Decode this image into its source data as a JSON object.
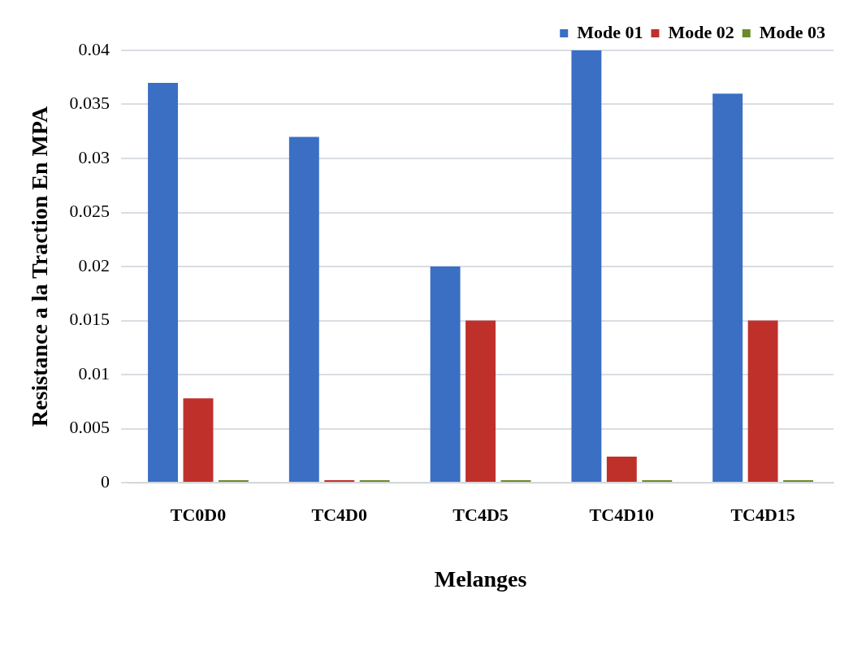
{
  "chart_data": {
    "type": "bar",
    "xlabel": "Melanges",
    "ylabel": "Resistance a la Traction En MPA",
    "categories": [
      "TC0D0",
      "TC4D0",
      "TC4D5",
      "TC4D10",
      "TC4D15"
    ],
    "series": [
      {
        "name": "Mode 01",
        "color": "#3a6fc4",
        "values": [
          0.037,
          0.032,
          0.02,
          0.04,
          0.036
        ]
      },
      {
        "name": "Mode 02",
        "color": "#c0302b",
        "values": [
          0.0078,
          0,
          0.015,
          0.0024,
          0.015
        ]
      },
      {
        "name": "Mode 03",
        "color": "#6b8a2a",
        "values": [
          0,
          0,
          0,
          0,
          0
        ]
      }
    ],
    "ylim": [
      0,
      0.04
    ],
    "yticks": [
      0,
      0.005,
      0.01,
      0.015,
      0.02,
      0.025,
      0.03,
      0.035,
      0.04
    ],
    "grid": "y",
    "legend": "top right"
  }
}
